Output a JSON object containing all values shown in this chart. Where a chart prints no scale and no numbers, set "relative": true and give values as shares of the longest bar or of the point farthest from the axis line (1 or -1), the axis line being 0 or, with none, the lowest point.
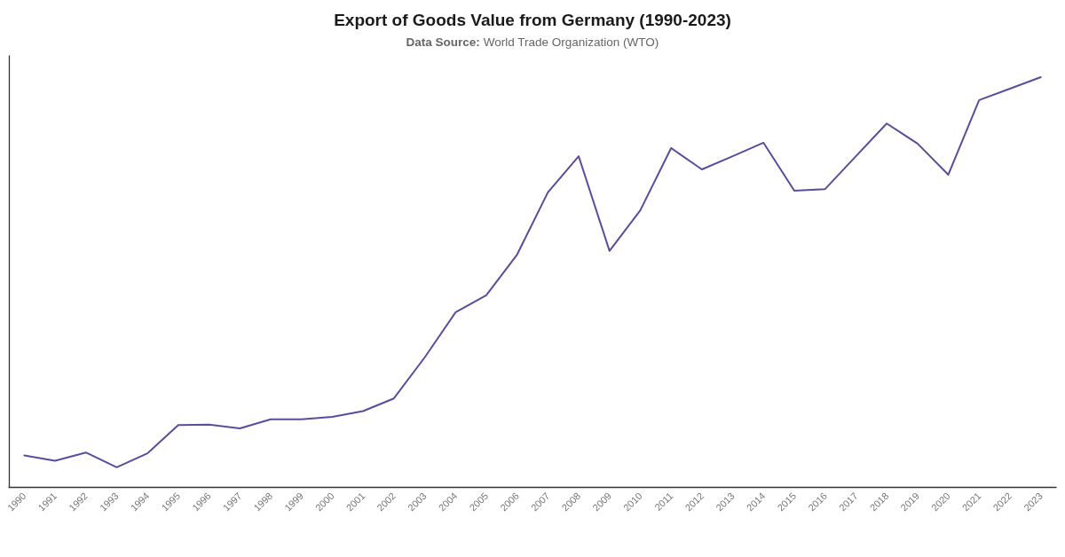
{
  "chart_data": {
    "type": "line",
    "title": "Export of Goods Value from Germany (1990-2023)",
    "subtitle": "Data Source: World Trade Organization (WTO)",
    "categories": [
      "1990",
      "1991",
      "1992",
      "1993",
      "1994",
      "1995",
      "1996",
      "1997",
      "1998",
      "1999",
      "2000",
      "2001",
      "2002",
      "2003",
      "2004",
      "2005",
      "2006",
      "2007",
      "2008",
      "2009",
      "2010",
      "2011",
      "2012",
      "2013",
      "2014",
      "2015",
      "2016",
      "2017",
      "2018",
      "2019",
      "2020",
      "2021",
      "2022",
      "2023"
    ],
    "series": [
      {
        "color": "#5d4b9b",
        "values": [
          0.077,
          0.064,
          0.084,
          0.048,
          0.082,
          0.151,
          0.152,
          0.143,
          0.165,
          0.165,
          0.171,
          0.185,
          0.216,
          0.316,
          0.426,
          0.468,
          0.567,
          0.719,
          0.807,
          0.576,
          0.675,
          0.827,
          0.775,
          0.807,
          0.84,
          0.723,
          0.727,
          0.807,
          0.887,
          0.838,
          0.762,
          0.944,
          0.972,
          1
        ]
      }
    ],
    "relative": true,
    "grid": false,
    "marker": "none",
    "line_style": "solid"
  }
}
